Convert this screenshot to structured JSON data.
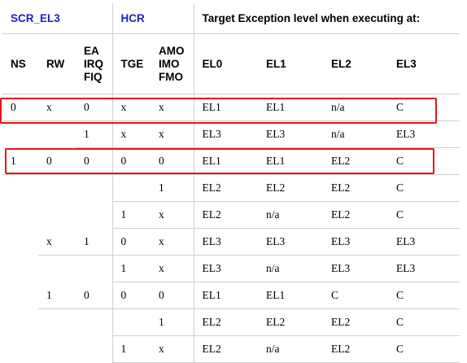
{
  "headers": {
    "scr_el3": "SCR_EL3",
    "hcr": "HCR",
    "target": "Target Exception level when executing at:",
    "cols": [
      "NS",
      "RW",
      "EA IRQ FIQ",
      "TGE",
      "AMO IMO FMO",
      "EL0",
      "EL1",
      "EL2",
      "EL3"
    ]
  },
  "rows": [
    [
      "0",
      "x",
      "0",
      "x",
      "x",
      "EL1",
      "EL1",
      "n/a",
      "C"
    ],
    [
      "",
      "",
      "1",
      "x",
      "x",
      "EL3",
      "EL3",
      "n/a",
      "EL3"
    ],
    [
      "1",
      "0",
      "0",
      "0",
      "0",
      "EL1",
      "EL1",
      "EL2",
      "C"
    ],
    [
      "",
      "",
      "",
      "",
      "1",
      "EL2",
      "EL2",
      "EL2",
      "C"
    ],
    [
      "",
      "",
      "",
      "1",
      "x",
      "EL2",
      "n/a",
      "EL2",
      "C"
    ],
    [
      "",
      "x",
      "1",
      "0",
      "x",
      "EL3",
      "EL3",
      "EL3",
      "EL3"
    ],
    [
      "",
      "",
      "",
      "1",
      "x",
      "EL3",
      "n/a",
      "EL3",
      "EL3"
    ],
    [
      "",
      "1",
      "0",
      "0",
      "0",
      "EL1",
      "EL1",
      "C",
      "C"
    ],
    [
      "",
      "",
      "",
      "",
      "1",
      "EL2",
      "EL2",
      "EL2",
      "C"
    ],
    [
      "",
      "",
      "",
      "1",
      "x",
      "EL2",
      "n/a",
      "EL2",
      "C"
    ]
  ],
  "highlight_color": "#e8131d",
  "header_accent_color": "#1f1fbf"
}
